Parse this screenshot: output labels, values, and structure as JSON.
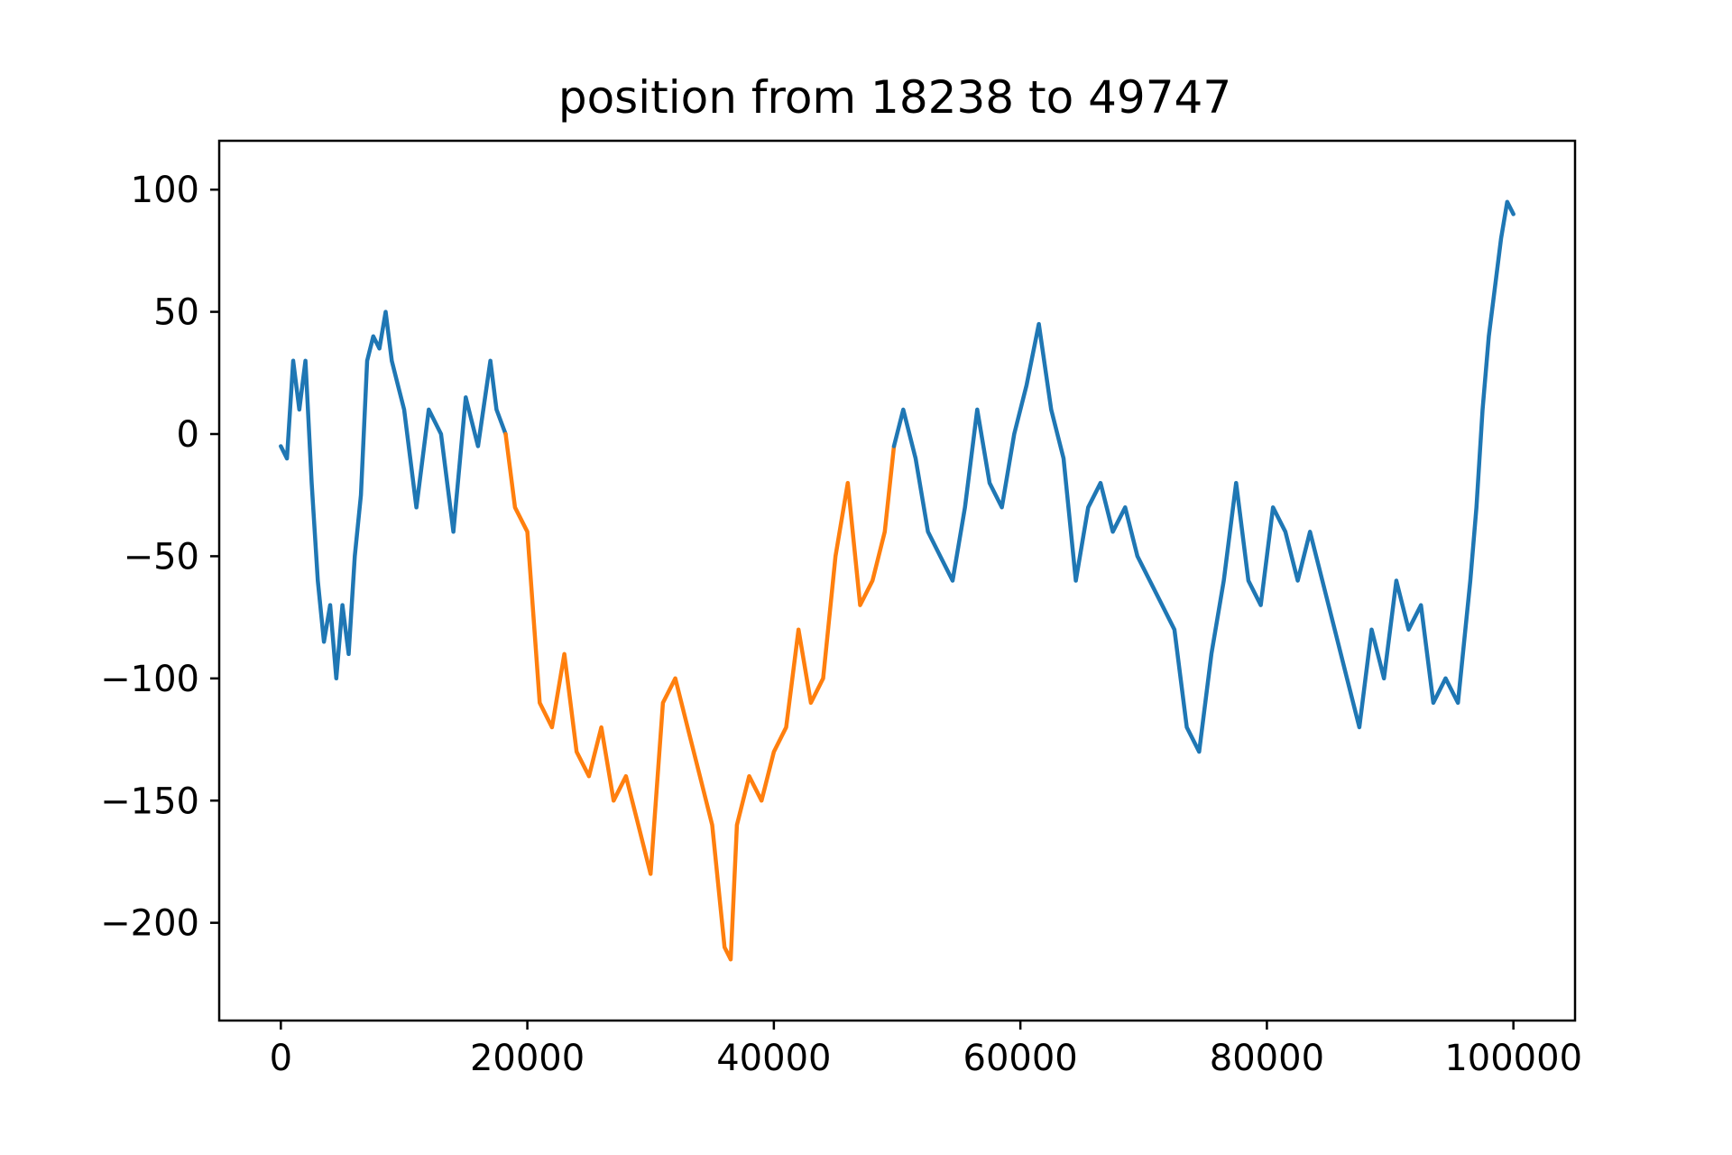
{
  "chart_data": {
    "type": "line",
    "title": "position from 18238 to 49747",
    "xlabel": "",
    "ylabel": "",
    "xlim": [
      -5000,
      105000
    ],
    "ylim": [
      -240,
      120
    ],
    "xticks": [
      0,
      20000,
      40000,
      60000,
      80000,
      100000
    ],
    "yticks": [
      100,
      50,
      0,
      -50,
      -100,
      -150,
      -200
    ],
    "grid": false,
    "legend": "none",
    "highlight_range": [
      18238,
      49747
    ],
    "colors": {
      "base": "#1f77b4",
      "highlight": "#ff7f0e"
    },
    "series": [
      {
        "role": "full-walk",
        "x": [
          0,
          500,
          1000,
          1500,
          2000,
          2500,
          3000,
          3500,
          4000,
          4500,
          5000,
          5500,
          6000,
          6500,
          7000,
          7500,
          8000,
          8500,
          9000,
          9500,
          10000,
          11000,
          12000,
          13000,
          14000,
          15000,
          16000,
          17000,
          17500,
          18238
        ],
        "y": [
          -5,
          -10,
          30,
          10,
          30,
          -20,
          -60,
          -85,
          -70,
          -100,
          -70,
          -90,
          -50,
          -25,
          30,
          40,
          35,
          50,
          30,
          20,
          10,
          -30,
          10,
          0,
          -40,
          15,
          -5,
          30,
          10,
          0
        ]
      },
      {
        "role": "highlight",
        "x": [
          18238,
          19000,
          20000,
          21000,
          22000,
          23000,
          24000,
          25000,
          26000,
          27000,
          28000,
          29000,
          30000,
          31000,
          32000,
          33000,
          34000,
          35000,
          36000,
          36500,
          37000,
          38000,
          39000,
          40000,
          41000,
          42000,
          43000,
          44000,
          45000,
          46000,
          47000,
          48000,
          49000,
          49747
        ],
        "y": [
          0,
          -30,
          -40,
          -110,
          -120,
          -90,
          -130,
          -140,
          -120,
          -150,
          -140,
          -160,
          -180,
          -110,
          -100,
          -120,
          -140,
          -160,
          -210,
          -215,
          -160,
          -140,
          -150,
          -130,
          -120,
          -80,
          -110,
          -100,
          -50,
          -20,
          -70,
          -60,
          -40,
          -5
        ]
      },
      {
        "role": "full-walk",
        "x": [
          49747,
          50500,
          51500,
          52500,
          53500,
          54500,
          55500,
          56500,
          57500,
          58500,
          59500,
          60500,
          61500,
          62500,
          63500,
          64500,
          65500,
          66500,
          67500,
          68500,
          69500,
          70500,
          71500,
          72500,
          73500,
          74500,
          75500,
          76500,
          77500,
          78500,
          79500,
          80500,
          81500,
          82500,
          83500,
          84500,
          85500,
          86500,
          87500,
          88500,
          89500,
          90500,
          91500,
          92500,
          93500,
          94500,
          95500,
          96500,
          97000,
          97500,
          98000,
          98500,
          99000,
          99500,
          100000
        ],
        "y": [
          -5,
          10,
          -10,
          -40,
          -50,
          -60,
          -30,
          10,
          -20,
          -30,
          0,
          20,
          45,
          10,
          -10,
          -60,
          -30,
          -20,
          -40,
          -30,
          -50,
          -60,
          -70,
          -80,
          -120,
          -130,
          -90,
          -60,
          -20,
          -60,
          -70,
          -30,
          -40,
          -60,
          -40,
          -60,
          -80,
          -100,
          -120,
          -80,
          -100,
          -60,
          -80,
          -70,
          -110,
          -100,
          -110,
          -60,
          -30,
          10,
          40,
          60,
          80,
          95,
          90
        ]
      }
    ]
  }
}
